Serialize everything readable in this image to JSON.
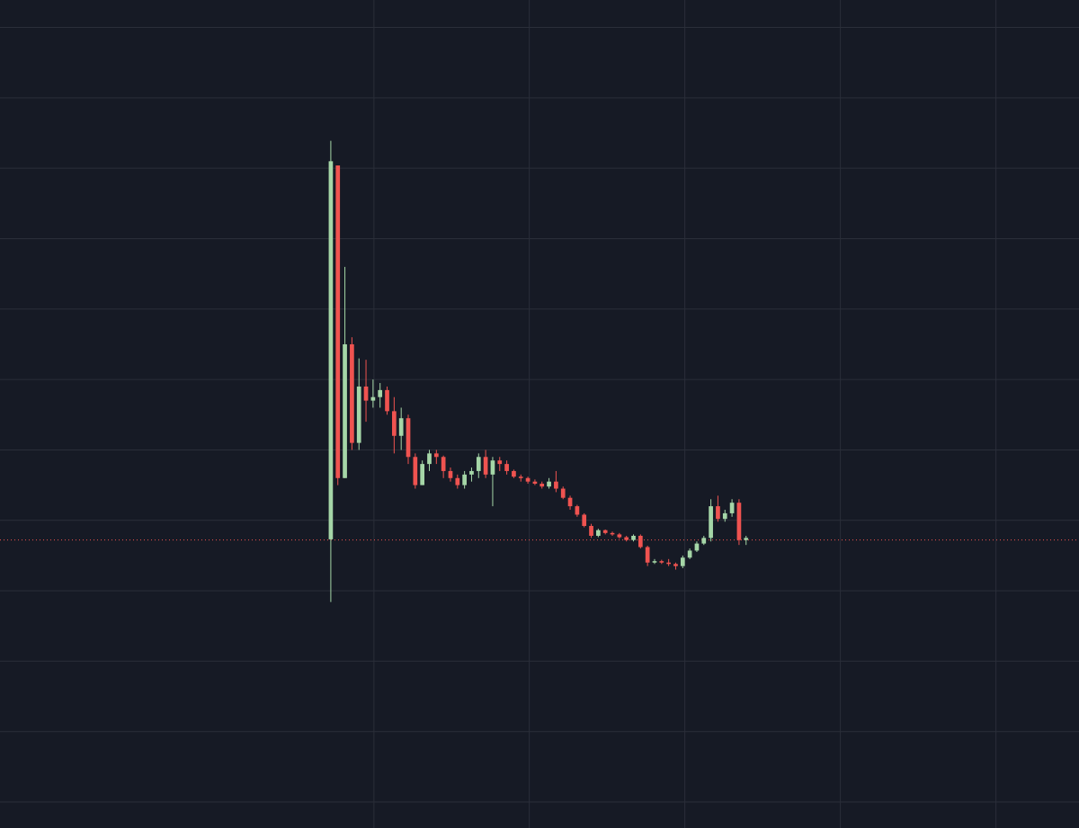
{
  "chart_data": {
    "type": "candlestick",
    "x": [
      0,
      1,
      2,
      3,
      4,
      5,
      6,
      7,
      8,
      9,
      10,
      11,
      12,
      13,
      14,
      15,
      16,
      17,
      18,
      19,
      20,
      21,
      22,
      23,
      24,
      25,
      26,
      27,
      28,
      29,
      30,
      31,
      32,
      33,
      34,
      35,
      36,
      37,
      38,
      39,
      40,
      41,
      42,
      43,
      44,
      45,
      46,
      47,
      48,
      49,
      50,
      51,
      52,
      53,
      54,
      55,
      56,
      57,
      58,
      59
    ],
    "open": [
      3.73,
      9.04,
      4.6,
      6.5,
      5.1,
      5.9,
      5.7,
      5.75,
      5.85,
      5.55,
      5.2,
      5.45,
      4.9,
      4.5,
      4.8,
      4.95,
      4.9,
      4.7,
      4.6,
      4.5,
      4.65,
      4.7,
      4.9,
      4.65,
      4.85,
      4.8,
      4.7,
      4.62,
      4.6,
      4.55,
      4.52,
      4.48,
      4.55,
      4.45,
      4.32,
      4.2,
      4.08,
      3.92,
      3.78,
      3.86,
      3.82,
      3.8,
      3.76,
      3.72,
      3.78,
      3.62,
      3.4,
      3.42,
      3.4,
      3.38,
      3.35,
      3.47,
      3.57,
      3.67,
      3.75,
      4.2,
      4.02,
      4.1,
      4.25,
      3.72
    ],
    "high": [
      9.39,
      9.04,
      7.6,
      6.6,
      6.3,
      6.28,
      6.0,
      5.95,
      5.9,
      5.75,
      5.6,
      5.5,
      4.95,
      4.85,
      5.0,
      5.0,
      4.92,
      4.75,
      4.65,
      4.7,
      4.75,
      4.95,
      5.0,
      4.9,
      4.9,
      4.85,
      4.72,
      4.65,
      4.62,
      4.58,
      4.55,
      4.6,
      4.7,
      4.48,
      4.35,
      4.22,
      4.1,
      3.95,
      3.88,
      3.87,
      3.84,
      3.82,
      3.78,
      3.8,
      3.8,
      3.64,
      3.45,
      3.44,
      3.45,
      3.4,
      3.5,
      3.6,
      3.7,
      3.78,
      4.3,
      4.35,
      4.15,
      4.3,
      4.3,
      3.78
    ],
    "low": [
      2.84,
      4.5,
      4.6,
      5.0,
      5.0,
      5.4,
      5.6,
      5.6,
      5.5,
      4.95,
      5.0,
      4.8,
      4.45,
      4.5,
      4.7,
      4.8,
      4.6,
      4.55,
      4.45,
      4.45,
      4.55,
      4.6,
      4.6,
      4.2,
      4.7,
      4.65,
      4.6,
      4.55,
      4.52,
      4.5,
      4.45,
      4.45,
      4.4,
      4.3,
      4.15,
      4.05,
      3.9,
      3.75,
      3.76,
      3.8,
      3.78,
      3.74,
      3.7,
      3.7,
      3.6,
      3.35,
      3.38,
      3.38,
      3.35,
      3.3,
      3.32,
      3.45,
      3.55,
      3.65,
      3.7,
      3.98,
      3.98,
      4.05,
      3.65,
      3.65
    ],
    "close": [
      9.1,
      4.6,
      6.5,
      5.1,
      5.9,
      5.7,
      5.75,
      5.85,
      5.55,
      5.2,
      5.45,
      4.9,
      4.5,
      4.8,
      4.95,
      4.9,
      4.7,
      4.6,
      4.5,
      4.65,
      4.7,
      4.9,
      4.65,
      4.85,
      4.8,
      4.7,
      4.62,
      4.6,
      4.55,
      4.52,
      4.48,
      4.55,
      4.45,
      4.32,
      4.2,
      4.08,
      3.92,
      3.78,
      3.86,
      3.82,
      3.8,
      3.76,
      3.72,
      3.78,
      3.62,
      3.4,
      3.42,
      3.4,
      3.38,
      3.35,
      3.47,
      3.57,
      3.67,
      3.75,
      4.2,
      4.02,
      4.1,
      4.25,
      3.72,
      3.75
    ],
    "up_color": "#a5d6a7",
    "down_color": "#ef5350",
    "price_line": 3.72,
    "price_line_color": "#ef5350",
    "xlim": [
      -47.0,
      106.3
    ],
    "xticks": [
      6.13,
      28.2,
      50.3,
      72.4,
      94.5
    ],
    "ylim": [
      -0.37,
      11.39
    ],
    "yticks": [
      0,
      1,
      2,
      3,
      4,
      5,
      6,
      7,
      8,
      9,
      10,
      11
    ],
    "grid": true
  }
}
